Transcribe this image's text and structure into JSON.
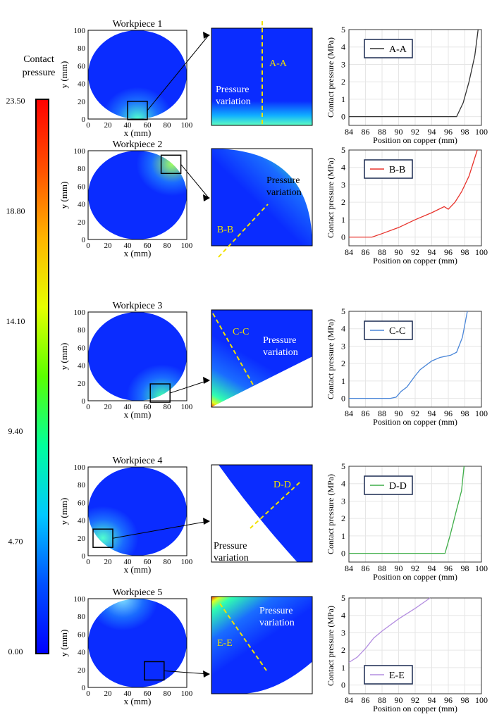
{
  "colorbar": {
    "title_line1": "Contact",
    "title_line2": "pressure",
    "ticks": [
      "23.50",
      "18.80",
      "14.10",
      "9.40",
      "4.70",
      "0.00"
    ],
    "min": 0,
    "max": 23.5,
    "colors": [
      "#0000ff",
      "#0050ff",
      "#00c8ff",
      "#00ff9c",
      "#5aff00",
      "#e6ff00",
      "#ffb400",
      "#ff5000",
      "#ff0000"
    ]
  },
  "workpieces": [
    {
      "title": "Workpiece 1",
      "section": "A-A",
      "label": "Pressure variation"
    },
    {
      "title": "Workpiece 2",
      "section": "B-B",
      "label": "Pressure variation"
    },
    {
      "title": "Workpiece 3",
      "section": "C-C",
      "label": "Pressure variation"
    },
    {
      "title": "Workpiece 4",
      "section": "D-D",
      "label": "Pressure variation"
    },
    {
      "title": "Workpiece 5",
      "section": "E-E",
      "label": "Pressure variation"
    }
  ],
  "map_axes": {
    "xlabel": "x (mm)",
    "ylabel": "y (mm)",
    "ticks": [
      "0",
      "20",
      "40",
      "60",
      "80",
      "100"
    ]
  },
  "chart_data": [
    {
      "type": "line",
      "title": "",
      "xlabel": "Position on copper (mm)",
      "ylabel": "Contact pressure (MPa)",
      "xlim": [
        84,
        100
      ],
      "ylim": [
        -0.5,
        5
      ],
      "xticks": [
        84,
        86,
        88,
        90,
        92,
        94,
        96,
        98,
        100
      ],
      "yticks": [
        0,
        1,
        2,
        3,
        4,
        5
      ],
      "grid": true,
      "legend": "top-left",
      "series": [
        {
          "name": "A-A",
          "color": "#333333",
          "points": [
            [
              84,
              0
            ],
            [
              97,
              0
            ],
            [
              97.8,
              0.8
            ],
            [
              98.5,
              2
            ],
            [
              99.2,
              3.5
            ],
            [
              99.6,
              5
            ]
          ]
        }
      ]
    },
    {
      "type": "line",
      "title": "",
      "xlabel": "Position on copper (mm)",
      "ylabel": "Contact pressure (MPa)",
      "xlim": [
        84,
        100
      ],
      "ylim": [
        -0.5,
        5
      ],
      "xticks": [
        84,
        86,
        88,
        90,
        92,
        94,
        96,
        98,
        100
      ],
      "yticks": [
        0,
        1,
        2,
        3,
        4,
        5
      ],
      "grid": true,
      "legend": "top-left",
      "series": [
        {
          "name": "B-B",
          "color": "#e8332c",
          "points": [
            [
              84,
              0
            ],
            [
              86.8,
              0
            ],
            [
              88,
              0.2
            ],
            [
              90,
              0.55
            ],
            [
              92,
              1.0
            ],
            [
              94,
              1.4
            ],
            [
              95.5,
              1.75
            ],
            [
              96,
              1.6
            ],
            [
              96.8,
              2.0
            ],
            [
              97.6,
              2.6
            ],
            [
              98.5,
              3.5
            ],
            [
              99.5,
              5
            ]
          ]
        }
      ]
    },
    {
      "type": "line",
      "title": "",
      "xlabel": "Position on copper (mm)",
      "ylabel": "Contact pressure (MPa)",
      "xlim": [
        84,
        100
      ],
      "ylim": [
        -0.5,
        5
      ],
      "xticks": [
        84,
        86,
        88,
        90,
        92,
        94,
        96,
        98,
        100
      ],
      "yticks": [
        0,
        1,
        2,
        3,
        4,
        5
      ],
      "grid": true,
      "legend": "top-left",
      "series": [
        {
          "name": "C-C",
          "color": "#4a86d8",
          "points": [
            [
              84,
              0
            ],
            [
              89,
              0
            ],
            [
              89.7,
              0.07
            ],
            [
              90.3,
              0.4
            ],
            [
              91,
              0.65
            ],
            [
              92,
              1.3
            ],
            [
              92.6,
              1.65
            ],
            [
              94,
              2.15
            ],
            [
              95,
              2.35
            ],
            [
              96.3,
              2.48
            ],
            [
              97,
              2.65
            ],
            [
              97.7,
              3.5
            ],
            [
              98.3,
              5
            ]
          ]
        }
      ]
    },
    {
      "type": "line",
      "title": "",
      "xlabel": "Position on copper (mm)",
      "ylabel": "Contact pressure (MPa)",
      "xlim": [
        84,
        100
      ],
      "ylim": [
        -0.5,
        5
      ],
      "xticks": [
        84,
        86,
        88,
        90,
        92,
        94,
        96,
        98,
        100
      ],
      "yticks": [
        0,
        1,
        2,
        3,
        4,
        5
      ],
      "grid": true,
      "legend": "top-left",
      "series": [
        {
          "name": "D-D",
          "color": "#3fae49",
          "points": [
            [
              84,
              0
            ],
            [
              95.6,
              0
            ],
            [
              96.2,
              1
            ],
            [
              97,
              2.5
            ],
            [
              97.6,
              3.6
            ],
            [
              97.9,
              5
            ]
          ]
        }
      ]
    },
    {
      "type": "line",
      "title": "",
      "xlabel": "Position on copper (mm)",
      "ylabel": "Contact pressure (MPa)",
      "xlim": [
        84,
        100
      ],
      "ylim": [
        -0.5,
        5
      ],
      "xticks": [
        84,
        86,
        88,
        90,
        92,
        94,
        96,
        98,
        100
      ],
      "yticks": [
        0,
        1,
        2,
        3,
        4,
        5
      ],
      "grid": true,
      "legend": "bottom-left",
      "series": [
        {
          "name": "E-E",
          "color": "#b48ee0",
          "points": [
            [
              84,
              1.3
            ],
            [
              85,
              1.6
            ],
            [
              86,
              2.1
            ],
            [
              87,
              2.7
            ],
            [
              88,
              3.1
            ],
            [
              90,
              3.8
            ],
            [
              92,
              4.4
            ],
            [
              93.8,
              5
            ]
          ]
        }
      ]
    }
  ]
}
